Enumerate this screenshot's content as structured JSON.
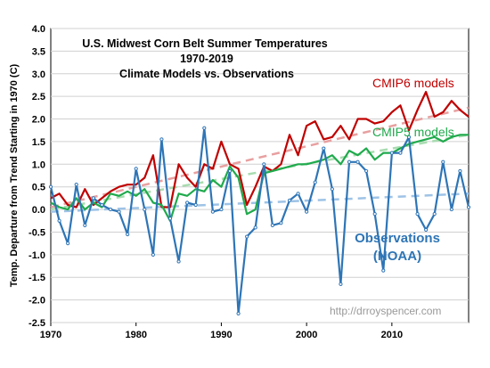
{
  "chart_data": {
    "type": "line",
    "title": "U.S. Midwest Corn Belt Summer Temperatures",
    "subtitle": "1970-2019",
    "subtitle2": "Climate Models vs. Observations",
    "ylabel": "Temp. Departure from Trend Starting in 1970 (C)",
    "xlabel": "",
    "xlim": [
      1970,
      2019
    ],
    "ylim": [
      -2.5,
      4.0
    ],
    "xticks": [
      "1970",
      "1980",
      "1990",
      "2000",
      "2010"
    ],
    "yticks": [
      "-2.5",
      "-2.0",
      "-1.5",
      "-1.0",
      "-0.5",
      "0.0",
      "0.5",
      "1.0",
      "1.5",
      "2.0",
      "2.5",
      "3.0",
      "3.5",
      "4.0"
    ],
    "grid": true,
    "x": [
      1970,
      1971,
      1972,
      1973,
      1974,
      1975,
      1976,
      1977,
      1978,
      1979,
      1980,
      1981,
      1982,
      1983,
      1984,
      1985,
      1986,
      1987,
      1988,
      1989,
      1990,
      1991,
      1992,
      1993,
      1994,
      1995,
      1996,
      1997,
      1998,
      1999,
      2000,
      2001,
      2002,
      2003,
      2004,
      2005,
      2006,
      2007,
      2008,
      2009,
      2010,
      2011,
      2012,
      2013,
      2014,
      2015,
      2016,
      2017,
      2018,
      2019
    ],
    "series": [
      {
        "name": "CMIP6 models",
        "color": "#c00000",
        "values": [
          0.25,
          0.35,
          0.1,
          0.05,
          0.45,
          0.1,
          0.25,
          0.4,
          0.5,
          0.55,
          0.55,
          0.7,
          1.2,
          0.05,
          0.05,
          1.0,
          0.7,
          0.5,
          1.0,
          0.9,
          1.5,
          1.0,
          0.9,
          0.1,
          0.5,
          0.95,
          0.85,
          1.0,
          1.65,
          1.2,
          1.85,
          1.95,
          1.55,
          1.6,
          1.85,
          1.55,
          2.0,
          2.0,
          1.9,
          1.95,
          2.15,
          2.3,
          1.75,
          2.2,
          2.6,
          2.05,
          2.15,
          2.4,
          2.2,
          2.05
        ],
        "trend": [
          0.05,
          2.25
        ]
      },
      {
        "name": "CMIP5 models",
        "color": "#1faa4c",
        "values": [
          0.15,
          0.05,
          0.0,
          0.25,
          0.0,
          0.15,
          0.05,
          0.35,
          0.3,
          0.4,
          0.3,
          0.45,
          0.15,
          0.1,
          -0.25,
          0.35,
          0.3,
          0.45,
          0.4,
          0.65,
          0.5,
          0.95,
          0.7,
          -0.1,
          0.0,
          0.8,
          0.85,
          0.9,
          0.95,
          1.0,
          1.0,
          1.05,
          1.1,
          1.2,
          1.0,
          1.3,
          1.2,
          1.35,
          1.1,
          1.25,
          1.25,
          1.35,
          1.45,
          1.5,
          1.55,
          1.6,
          1.5,
          1.6,
          1.65,
          1.65
        ],
        "trend": [
          0.0,
          1.65
        ]
      },
      {
        "name": "Observations (NOAA)",
        "color": "#2e75b6",
        "values": [
          0.5,
          -0.25,
          -0.75,
          0.55,
          -0.35,
          0.25,
          0.1,
          0.0,
          -0.05,
          -0.55,
          0.9,
          0.0,
          -1.0,
          1.55,
          -0.2,
          -1.15,
          0.15,
          0.1,
          1.8,
          -0.05,
          0.0,
          0.85,
          -2.3,
          -0.6,
          -0.4,
          1.0,
          -0.35,
          -0.3,
          0.2,
          0.35,
          -0.05,
          0.6,
          1.35,
          0.45,
          -1.65,
          1.05,
          1.05,
          0.85,
          -0.1,
          -1.35,
          1.25,
          1.25,
          1.6,
          -0.1,
          -0.45,
          -0.1,
          1.05,
          0.0,
          0.85,
          0.05
        ],
        "trend": [
          -0.05,
          0.35
        ]
      }
    ],
    "series_labels": {
      "cmip6": "CMIP6 models",
      "cmip5": "CMIP5 models",
      "obs_line1": "Observations",
      "obs_line2": "(NOAA)"
    },
    "annotation": "http://drroyspencer.com"
  }
}
